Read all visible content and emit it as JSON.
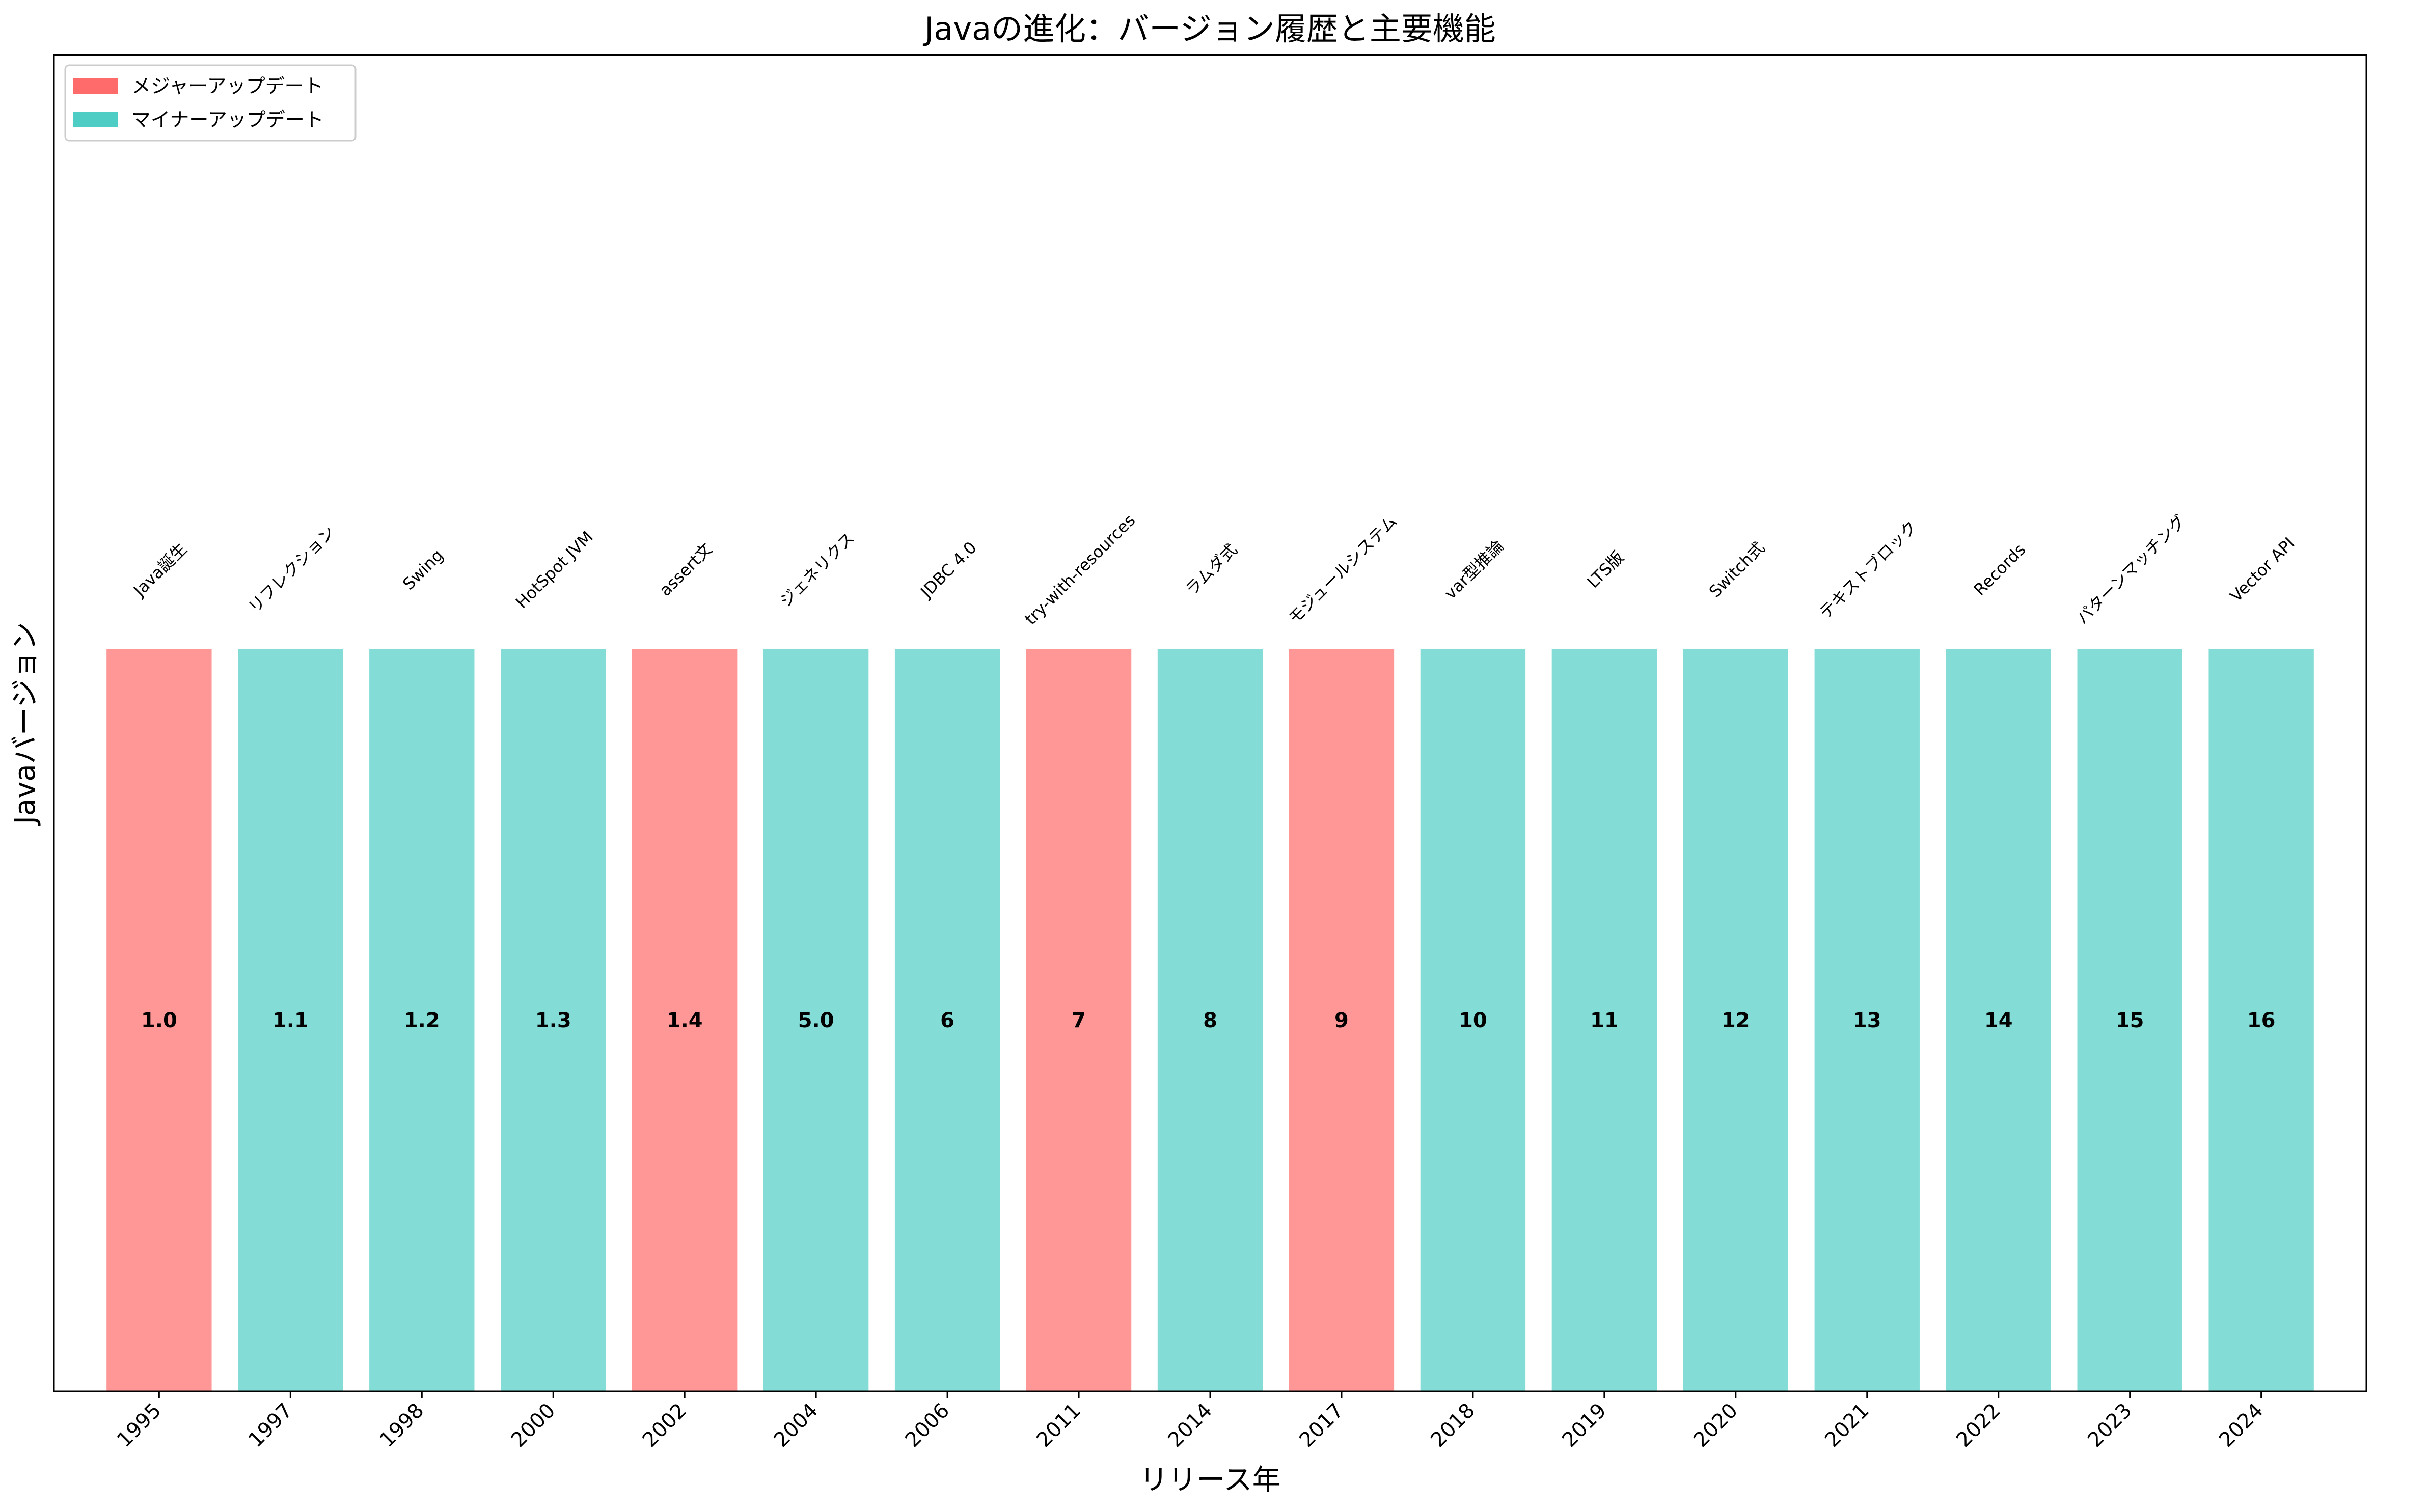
{
  "chart_data": {
    "type": "bar",
    "title": "Javaの進化：バージョン履歴と主要機能",
    "xlabel": "リリース年",
    "ylabel": "Javaバージョン",
    "categories": [
      "1995",
      "1997",
      "1998",
      "2000",
      "2002",
      "2004",
      "2006",
      "2011",
      "2014",
      "2017",
      "2018",
      "2019",
      "2020",
      "2021",
      "2022",
      "2023",
      "2024"
    ],
    "versions": [
      "1.0",
      "1.1",
      "1.2",
      "1.3",
      "1.4",
      "5.0",
      "6",
      "7",
      "8",
      "9",
      "10",
      "11",
      "12",
      "13",
      "14",
      "15",
      "16"
    ],
    "features": [
      "Java誕生",
      "リフレクション",
      "Swing",
      "HotSpot JVM",
      "assert文",
      "ジェネリクス",
      "JDBC 4.0",
      "try-with-resources",
      "ラムダ式",
      "モジュールシステム",
      "var型推論",
      "LTS版",
      "Switch式",
      "テキストブロック",
      "Records",
      "パターンマッチング",
      "Vector API"
    ],
    "update_type": [
      "major",
      "minor",
      "minor",
      "minor",
      "major",
      "minor",
      "minor",
      "major",
      "minor",
      "major",
      "minor",
      "minor",
      "minor",
      "minor",
      "minor",
      "minor",
      "minor"
    ],
    "values": [
      1,
      1,
      1,
      1,
      1,
      1,
      1,
      1,
      1,
      1,
      1,
      1,
      1,
      1,
      1,
      1,
      1
    ],
    "ylim": [
      0,
      1.8
    ],
    "grid": false,
    "legend": {
      "placement": "top-left",
      "entries": [
        {
          "key": "major",
          "label": "メジャーアップデート",
          "color": "#ff6b6b"
        },
        {
          "key": "minor",
          "label": "マイナーアップデート",
          "color": "#4ecdc4"
        }
      ]
    },
    "bar_opacity": 0.7
  }
}
